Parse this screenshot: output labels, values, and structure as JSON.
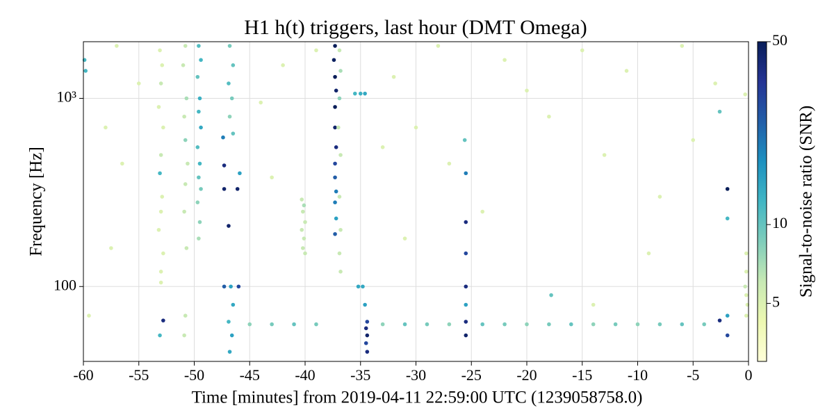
{
  "chart_data": {
    "type": "scatter",
    "title": "H1 h(t) triggers, last hour (DMT Omega)",
    "x_label": "Time [minutes] from 2019-04-11 22:59:00 UTC (1239058758.0)",
    "y_label": "Frequency [Hz]",
    "colorbar_label": "Signal-to-noise ratio (SNR)",
    "xlim": [
      -60,
      0
    ],
    "xticks": [
      -60,
      -55,
      -50,
      -45,
      -40,
      -35,
      -30,
      -25,
      -20,
      -15,
      -10,
      -5,
      0
    ],
    "ylim": [
      40,
      2000
    ],
    "yticks": [
      100,
      {
        "value": 1000,
        "label": "10³"
      }
    ],
    "y_log": true,
    "grid": true,
    "clim": [
      3,
      50
    ],
    "cticks": [
      5,
      10,
      50
    ],
    "c_log": true,
    "colormap": [
      "#ffffd9",
      "#edf8b1",
      "#c7e9b4",
      "#7fcdbb",
      "#41b6c4",
      "#1d91c0",
      "#225ea8",
      "#253494",
      "#081d58"
    ],
    "x": [
      -53.1,
      -52.9,
      -53,
      -53.2,
      -52.8,
      -53,
      -53.1,
      -52.9,
      -53,
      -53.2,
      -52.8,
      -53,
      -53,
      -52.8,
      -53.1,
      -50.8,
      -51,
      -50.7,
      -50.9,
      -50.8,
      -50.6,
      -50.8,
      -50.9,
      -50.7,
      -50.8,
      -50.9,
      -49.6,
      -49.4,
      -49.7,
      -49.5,
      -49.6,
      -49.4,
      -49.7,
      -49.5,
      -49.6,
      -49.4,
      -49.7,
      -49.5,
      -49.6,
      -46.8,
      -46.5,
      -46.9,
      -46.6,
      -46.8,
      -46.5,
      -47.4,
      -47.3,
      -47.3,
      -46.9,
      -47.3,
      -46.7,
      -46.5,
      -46.9,
      -46.6,
      -46.8,
      -46.1,
      -45.9,
      -46,
      -40.3,
      -40.1,
      -40.2,
      -40,
      -40.3,
      -40.1,
      -40.2,
      -40,
      -37.3,
      -37.4,
      -37.3,
      -37.2,
      -37.3,
      -37.3,
      -37.2,
      -37.3,
      -37.3,
      -37.2,
      -37.3,
      -37.2,
      -37.3,
      -36.9,
      -36.8,
      -36.9,
      -37,
      -36.8,
      -36.9,
      -36.8,
      -36.9,
      -36.8,
      -35.5,
      -35,
      -34.6,
      -35.2,
      -34.8,
      -34.6,
      -34.4,
      -34.5,
      -34.4,
      -34.5,
      -34.4,
      -25.5,
      -25.5,
      -25.5,
      -25.5,
      -25.5,
      -25.5,
      -25.5,
      -25.6,
      -45,
      -43,
      -41,
      -39,
      -33,
      -31,
      -29,
      -27,
      -24,
      -22,
      -20,
      -18,
      -16,
      -14,
      -12,
      -10,
      -8,
      -6,
      -4,
      -1.9,
      -1.9,
      -1.9,
      -1.9,
      -2.6,
      -2.6,
      -0.2,
      -0.2,
      -0.3,
      -0.2,
      -0.1,
      -0.2,
      -0.3,
      -59.9,
      -59.8,
      -57,
      -55,
      -58,
      -56.5,
      -57.5,
      -59.5,
      -44,
      -42,
      -43,
      -39,
      -32,
      -30,
      -28,
      -27,
      -22,
      -20,
      -18,
      -17.8,
      -15,
      -13,
      -11,
      -8,
      -6,
      -5,
      -3,
      -9,
      -24,
      -14,
      -31,
      -33
    ],
    "y": [
      1800,
      1500,
      1200,
      900,
      700,
      500,
      400,
      300,
      250,
      200,
      150,
      120,
      105,
      66,
      55,
      1900,
      1500,
      1000,
      800,
      600,
      450,
      350,
      250,
      160,
      70,
      55,
      1900,
      1600,
      1300,
      1000,
      850,
      700,
      550,
      450,
      380,
      330,
      280,
      220,
      180,
      1900,
      1500,
      1200,
      1000,
      800,
      650,
      620,
      440,
      330,
      210,
      100,
      100,
      80,
      65,
      55,
      45,
      330,
      400,
      100,
      290,
      270,
      250,
      220,
      200,
      180,
      160,
      150,
      1900,
      1600,
      1300,
      1100,
      900,
      700,
      550,
      450,
      380,
      320,
      280,
      230,
      190,
      1800,
      1400,
      1000,
      700,
      500,
      300,
      200,
      150,
      120,
      1060,
      1060,
      1060,
      100,
      100,
      80,
      65,
      60,
      55,
      50,
      45,
      400,
      220,
      150,
      100,
      80,
      65,
      55,
      600,
      63,
      63,
      63,
      63,
      63,
      63,
      63,
      63,
      63,
      63,
      63,
      63,
      63,
      63,
      63,
      63,
      63,
      63,
      63,
      330,
      230,
      70,
      55,
      66,
      850,
      150,
      120,
      100,
      90,
      80,
      70,
      1050,
      1600,
      1400,
      1900,
      1200,
      700,
      450,
      160,
      70,
      950,
      1500,
      380,
      1800,
      1300,
      700,
      1900,
      450,
      1600,
      1100,
      800,
      90,
      1800,
      500,
      1400,
      300,
      1900,
      600,
      1200,
      150,
      250,
      80,
      180,
      550
    ],
    "snr": [
      5,
      5,
      6,
      5,
      5,
      6,
      12,
      5,
      5,
      5,
      5,
      5,
      5,
      40,
      12,
      6,
      6,
      7,
      6,
      8,
      6,
      6,
      6,
      6,
      6,
      6,
      11,
      12,
      10,
      13,
      12,
      14,
      11,
      12,
      10,
      9,
      8,
      8,
      7,
      9,
      10,
      11,
      9,
      8,
      10,
      20,
      40,
      45,
      45,
      25,
      15,
      14,
      12,
      15,
      14,
      45,
      15,
      30,
      6,
      7,
      6,
      6,
      6,
      6,
      6,
      6,
      50,
      48,
      50,
      45,
      50,
      45,
      40,
      30,
      25,
      20,
      20,
      15,
      25,
      6,
      7,
      8,
      6,
      6,
      6,
      6,
      6,
      6,
      12,
      13,
      14,
      14,
      14,
      15,
      30,
      40,
      45,
      30,
      40,
      20,
      40,
      30,
      40,
      15,
      40,
      45,
      10,
      8,
      9,
      10,
      9,
      8,
      10,
      9,
      8,
      10,
      9,
      8,
      9,
      10,
      8,
      9,
      8,
      9,
      10,
      9,
      50,
      12,
      15,
      30,
      40,
      10,
      5,
      5,
      6,
      5,
      5,
      5,
      5,
      12,
      12,
      5,
      5,
      5,
      5,
      5,
      5,
      5,
      5,
      5,
      5,
      5,
      5,
      5,
      5,
      5,
      5,
      5,
      10,
      5,
      5,
      5,
      5,
      5,
      5,
      5,
      5,
      5,
      5,
      5,
      5
    ]
  }
}
